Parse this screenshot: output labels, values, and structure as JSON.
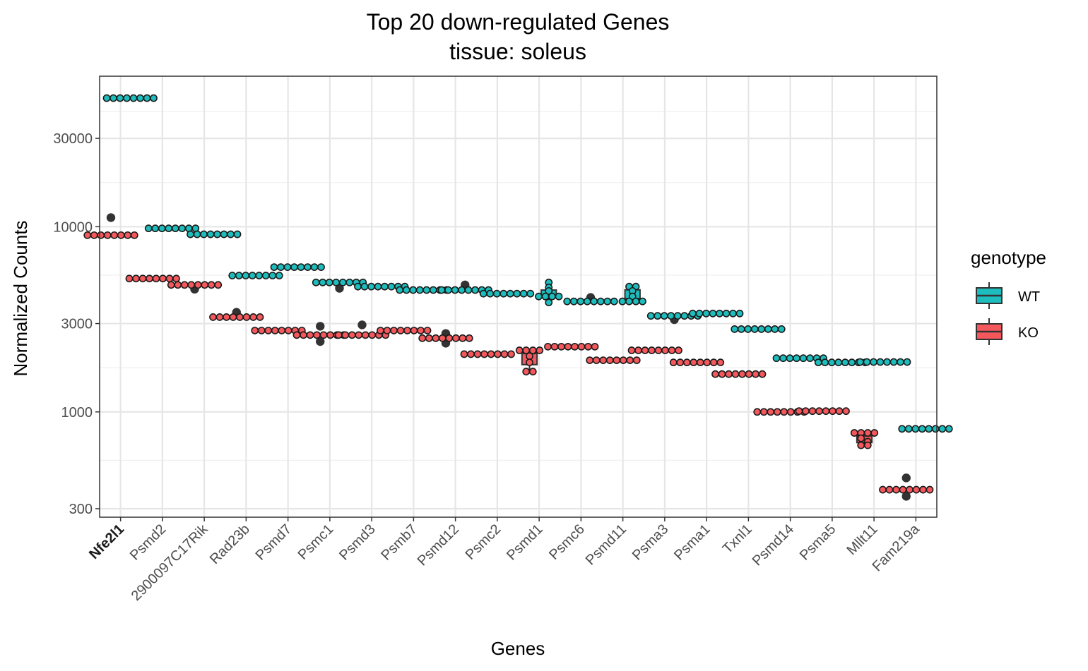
{
  "chart_data": {
    "type": "boxplot",
    "title": "Top 20 down-regulated Genes",
    "subtitle": "tissue: soleus",
    "xlabel": "Genes",
    "ylabel": "Normalized Counts",
    "y_scale": "log10",
    "ylim": [
      270,
      65000
    ],
    "y_ticks": [
      300,
      1000,
      3000,
      10000,
      30000
    ],
    "y_tick_labels": [
      "300",
      "1000",
      "3000",
      "10000",
      "30000"
    ],
    "grid": true,
    "legend": {
      "title": "genotype",
      "position": "right",
      "entries": [
        {
          "label": "WT",
          "color": "#1ebdbd"
        },
        {
          "label": "KO",
          "color": "#f4585c"
        }
      ]
    },
    "highlighted_category": "Nfe2l1",
    "categories": [
      "Nfe2l1",
      "Psmd2",
      "2900097C17Rik",
      "Rad23b",
      "Psmd7",
      "Psmc1",
      "Psmd3",
      "Psmb7",
      "Psmd12",
      "Psmc2",
      "Psmd1",
      "Psmc6",
      "Psmd11",
      "Psma3",
      "Psma1",
      "Txnl1",
      "Psmd14",
      "Psma5",
      "Mllt11",
      "Fam219a"
    ],
    "series": [
      {
        "name": "WT",
        "color": "#1ebdbd",
        "values": [
          [
            49500,
            49500,
            49500,
            49500,
            49500,
            49500,
            49500,
            49500
          ],
          [
            9800,
            9800,
            9800,
            9800,
            9800,
            9800,
            9800,
            9800
          ],
          [
            9100,
            9100,
            9100,
            9100,
            9100,
            9100,
            9100,
            9100
          ],
          [
            5450,
            5450,
            5450,
            5450,
            5450,
            5450,
            5450,
            5450
          ],
          [
            6050,
            6050,
            6050,
            6050,
            6050,
            6050,
            6050,
            6050
          ],
          [
            5000,
            5000,
            5000,
            5000,
            5000,
            5000,
            5000,
            5000,
            4650
          ],
          [
            4750,
            4750,
            4750,
            4750,
            4750,
            4750,
            4750,
            4750
          ],
          [
            4550,
            4550,
            4550,
            4550,
            4550,
            4550,
            4550,
            4550
          ],
          [
            4550,
            4550,
            4550,
            4550,
            4550,
            4550,
            4550,
            4550,
            4850
          ],
          [
            4350,
            4350,
            4350,
            4350,
            4350,
            4350,
            4350,
            4350
          ],
          [
            4200,
            4200,
            4200,
            4200,
            4500,
            4700,
            5000,
            3900
          ],
          [
            3950,
            3950,
            3950,
            3950,
            3950,
            3950,
            3950,
            3950,
            4150
          ],
          [
            3950,
            3950,
            3950,
            4200,
            4500,
            4750,
            4750,
            3950
          ],
          [
            3300,
            3300,
            3300,
            3300,
            3300,
            3300,
            3300,
            3300,
            3150
          ],
          [
            3400,
            3400,
            3400,
            3400,
            3400,
            3400,
            3400,
            3400
          ],
          [
            2800,
            2800,
            2800,
            2800,
            2800,
            2800,
            2800,
            2800
          ],
          [
            1950,
            1950,
            1950,
            1950,
            1950,
            1950,
            1950,
            1950
          ],
          [
            1850,
            1850,
            1850,
            1850,
            1850,
            1850,
            1850,
            1850
          ],
          [
            1860,
            1860,
            1860,
            1860,
            1860,
            1860,
            1860,
            1860
          ],
          [
            810,
            810,
            810,
            810,
            810,
            810,
            810,
            810
          ]
        ]
      },
      {
        "name": "KO",
        "color": "#f4585c",
        "values": [
          [
            9000,
            9000,
            9000,
            9000,
            9000,
            9000,
            9000,
            9000,
            11200
          ],
          [
            5250,
            5250,
            5250,
            5250,
            5250,
            5250,
            5250,
            5250
          ],
          [
            4850,
            4850,
            4850,
            4850,
            4850,
            4850,
            4850,
            4850,
            4600
          ],
          [
            3250,
            3250,
            3250,
            3250,
            3250,
            3250,
            3250,
            3250,
            3450
          ],
          [
            2750,
            2750,
            2750,
            2750,
            2750,
            2750,
            2750,
            2750
          ],
          [
            2600,
            2600,
            2600,
            2600,
            2600,
            2600,
            2600,
            2600,
            2900,
            2400
          ],
          [
            2600,
            2600,
            2600,
            2600,
            2600,
            2600,
            2600,
            2600,
            2950
          ],
          [
            2750,
            2750,
            2750,
            2750,
            2750,
            2750,
            2750,
            2750
          ],
          [
            2500,
            2500,
            2500,
            2500,
            2500,
            2500,
            2500,
            2500,
            2650,
            2350
          ],
          [
            2050,
            2050,
            2050,
            2050,
            2050,
            2050,
            2050,
            2050
          ],
          [
            2150,
            2150,
            2150,
            2150,
            1650,
            1650,
            1850,
            2000
          ],
          [
            2250,
            2250,
            2250,
            2250,
            2250,
            2250,
            2250,
            2250
          ],
          [
            1900,
            1900,
            1900,
            1900,
            1900,
            1900,
            1900,
            1900
          ],
          [
            2150,
            2150,
            2150,
            2150,
            2150,
            2150,
            2150,
            2150
          ],
          [
            1850,
            1850,
            1850,
            1850,
            1850,
            1850,
            1850,
            1850
          ],
          [
            1600,
            1600,
            1600,
            1600,
            1600,
            1600,
            1600,
            1600
          ],
          [
            1000,
            1000,
            1000,
            1000,
            1000,
            1000,
            1000,
            1000
          ],
          [
            1010,
            1010,
            1010,
            1010,
            1010,
            1010,
            1010,
            1010
          ],
          [
            770,
            770,
            770,
            770,
            660,
            660,
            720,
            690
          ],
          [
            380,
            380,
            380,
            380,
            380,
            380,
            380,
            380,
            440,
            350
          ]
        ]
      }
    ]
  }
}
